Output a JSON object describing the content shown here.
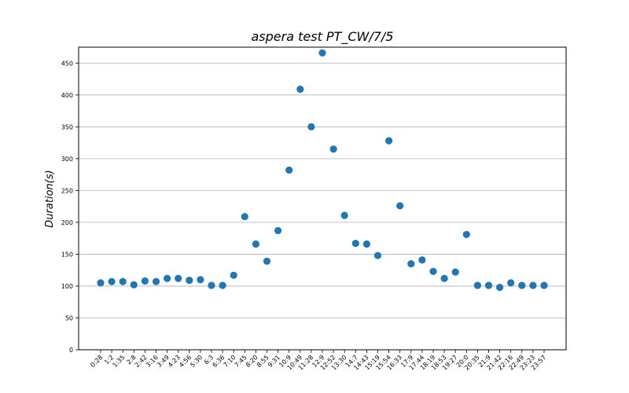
{
  "chart_data": {
    "type": "scatter",
    "title": "aspera test   PT_CW/7/5",
    "xlabel": "",
    "ylabel": "Duration(s)",
    "ylim": [
      0,
      475
    ],
    "yticks": [
      0,
      50,
      100,
      150,
      200,
      250,
      300,
      350,
      400,
      450
    ],
    "grid": "horizontal",
    "color": "#1f77b4",
    "categories": [
      "0:28",
      "1:2",
      "1:35",
      "2:8",
      "2:42",
      "3:16",
      "3:49",
      "4:23",
      "4:56",
      "5:30",
      "6:3",
      "6:36",
      "7:10",
      "7:45",
      "8:20",
      "8:55",
      "9:31",
      "10:9",
      "10:49",
      "11:28",
      "12:9",
      "12:52",
      "13:30",
      "14:7",
      "14:43",
      "15:19",
      "15:54",
      "16:33",
      "17:9",
      "17:44",
      "18:19",
      "18:53",
      "19:27",
      "20:0",
      "20:35",
      "21:9",
      "21:42",
      "22:16",
      "22:49",
      "23:23",
      "23:57"
    ],
    "values": [
      105,
      107,
      107,
      102,
      108,
      107,
      112,
      112,
      109,
      110,
      101,
      101,
      117,
      209,
      166,
      139,
      187,
      282,
      409,
      350,
      466,
      315,
      211,
      167,
      166,
      148,
      328,
      226,
      135,
      141,
      123,
      112,
      122,
      181,
      101,
      101,
      98,
      105,
      101,
      101,
      101
    ]
  }
}
